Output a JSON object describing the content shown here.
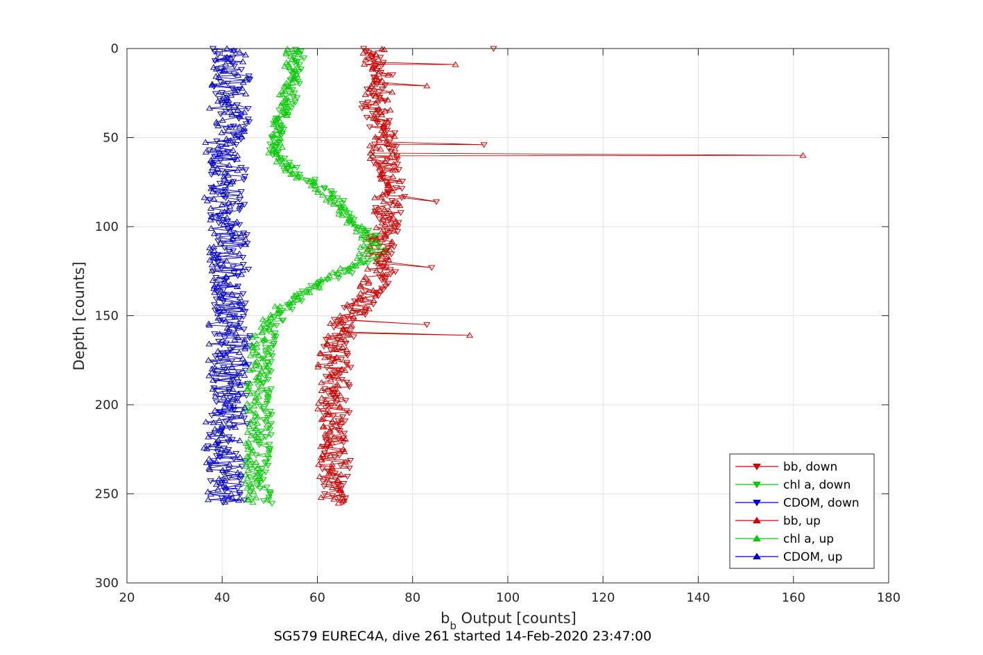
{
  "chart_data": {
    "type": "line",
    "xlabel": "b",
    "xlabel_subscript": "b",
    "xlabel_rest": " Output [counts]",
    "ylabel": "Depth [counts]",
    "title": "SG579 EUREC4A, dive 261 started 14-Feb-2020 23:47:00",
    "xlim": [
      20,
      180
    ],
    "ylim": [
      0,
      300
    ],
    "y_reversed": true,
    "grid": true,
    "legend_position": "bottom-right",
    "x_ticks": [
      "20",
      "40",
      "60",
      "80",
      "100",
      "120",
      "140",
      "160",
      "180"
    ],
    "y_ticks": [
      "0",
      "50",
      "100",
      "150",
      "200",
      "250",
      "300"
    ],
    "series": [
      {
        "name": "bb, down",
        "color": "#d00000",
        "marker": "triangle-down",
        "profile": [
          [
            0,
            72
          ],
          [
            5,
            74
          ],
          [
            10,
            73
          ],
          [
            20,
            73
          ],
          [
            30,
            72
          ],
          [
            40,
            73
          ],
          [
            50,
            74
          ],
          [
            60,
            74
          ],
          [
            70,
            76
          ],
          [
            80,
            76
          ],
          [
            90,
            75
          ],
          [
            100,
            74
          ],
          [
            110,
            74
          ],
          [
            120,
            74
          ],
          [
            130,
            73
          ],
          [
            140,
            70
          ],
          [
            150,
            67
          ],
          [
            160,
            65
          ],
          [
            170,
            64
          ],
          [
            180,
            64
          ],
          [
            200,
            64
          ],
          [
            220,
            64
          ],
          [
            240,
            64
          ],
          [
            255,
            63
          ]
        ],
        "spread": 3,
        "outliers": [
          [
            0,
            97
          ],
          [
            54,
            95
          ],
          [
            155,
            83
          ],
          [
            123,
            84
          ],
          [
            86,
            85
          ]
        ]
      },
      {
        "name": "chl a, down",
        "color": "#00cc00",
        "marker": "triangle-down",
        "profile": [
          [
            0,
            56
          ],
          [
            10,
            56
          ],
          [
            20,
            55
          ],
          [
            30,
            54
          ],
          [
            40,
            52
          ],
          [
            50,
            51
          ],
          [
            60,
            51
          ],
          [
            70,
            56
          ],
          [
            80,
            62
          ],
          [
            90,
            66
          ],
          [
            100,
            69
          ],
          [
            105,
            71
          ],
          [
            110,
            73
          ],
          [
            115,
            73
          ],
          [
            120,
            71
          ],
          [
            125,
            67
          ],
          [
            130,
            62
          ],
          [
            140,
            56
          ],
          [
            150,
            52
          ],
          [
            160,
            50
          ],
          [
            170,
            50
          ],
          [
            180,
            49
          ],
          [
            200,
            49
          ],
          [
            220,
            49
          ],
          [
            240,
            48
          ],
          [
            255,
            49
          ]
        ],
        "spread": 1.5,
        "outliers": []
      },
      {
        "name": "CDOM, down",
        "color": "#0000cc",
        "marker": "triangle-down",
        "profile": [
          [
            0,
            42
          ],
          [
            20,
            42
          ],
          [
            40,
            42
          ],
          [
            60,
            41
          ],
          [
            80,
            41
          ],
          [
            100,
            41
          ],
          [
            120,
            42
          ],
          [
            140,
            42
          ],
          [
            160,
            42
          ],
          [
            180,
            42
          ],
          [
            200,
            42
          ],
          [
            220,
            41
          ],
          [
            240,
            41
          ],
          [
            255,
            41
          ]
        ],
        "spread": 4,
        "outliers": []
      },
      {
        "name": "bb, up",
        "color": "#d00000",
        "marker": "triangle-up",
        "profile": [
          [
            0,
            72
          ],
          [
            20,
            73
          ],
          [
            40,
            73
          ],
          [
            60,
            74
          ],
          [
            80,
            75
          ],
          [
            100,
            74
          ],
          [
            120,
            73
          ],
          [
            140,
            70
          ],
          [
            150,
            67
          ],
          [
            160,
            64
          ],
          [
            180,
            63
          ],
          [
            200,
            63
          ],
          [
            220,
            63
          ],
          [
            240,
            63
          ],
          [
            255,
            63
          ]
        ],
        "spread": 3,
        "outliers": [
          [
            60,
            162
          ],
          [
            161,
            92
          ],
          [
            9,
            89
          ],
          [
            21,
            83
          ]
        ]
      },
      {
        "name": "chl a, up",
        "color": "#00cc00",
        "marker": "triangle-up",
        "profile": [
          [
            0,
            55
          ],
          [
            20,
            54
          ],
          [
            40,
            52
          ],
          [
            60,
            51
          ],
          [
            70,
            55
          ],
          [
            80,
            61
          ],
          [
            90,
            65
          ],
          [
            100,
            68
          ],
          [
            110,
            71
          ],
          [
            120,
            68
          ],
          [
            130,
            62
          ],
          [
            140,
            55
          ],
          [
            150,
            50
          ],
          [
            160,
            48
          ],
          [
            180,
            47
          ],
          [
            200,
            46
          ],
          [
            220,
            46
          ],
          [
            240,
            46
          ],
          [
            255,
            47
          ]
        ],
        "spread": 1.5,
        "outliers": []
      },
      {
        "name": "CDOM, up",
        "color": "#0000cc",
        "marker": "triangle-up",
        "profile": [
          [
            0,
            41
          ],
          [
            20,
            41
          ],
          [
            40,
            41
          ],
          [
            60,
            40
          ],
          [
            80,
            40
          ],
          [
            100,
            41
          ],
          [
            120,
            41
          ],
          [
            140,
            41
          ],
          [
            160,
            41
          ],
          [
            180,
            41
          ],
          [
            200,
            41
          ],
          [
            220,
            40
          ],
          [
            240,
            40
          ],
          [
            255,
            41
          ]
        ],
        "spread": 4,
        "outliers": []
      }
    ]
  }
}
